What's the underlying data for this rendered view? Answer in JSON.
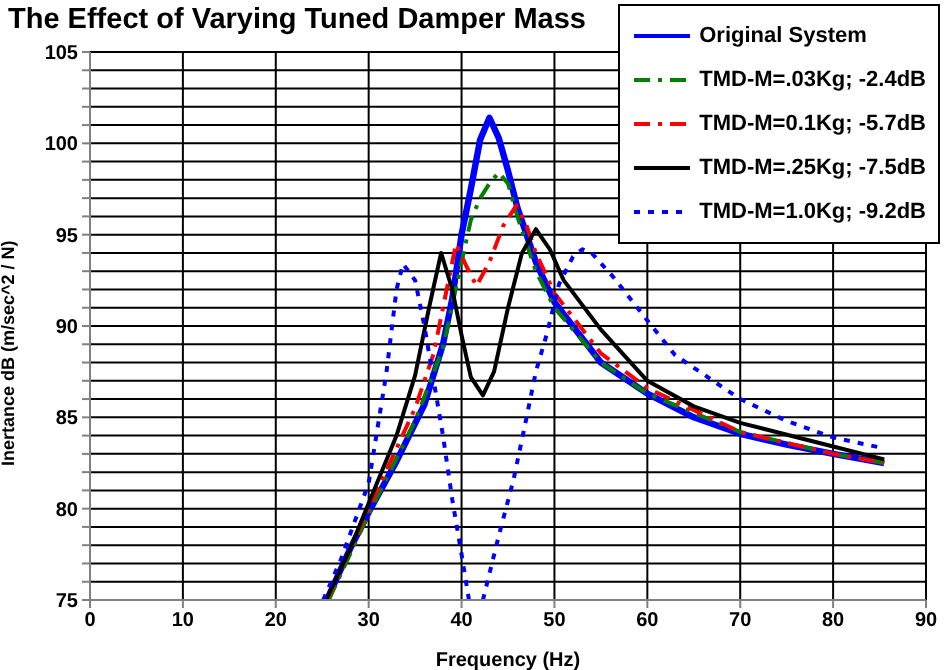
{
  "chart_data": {
    "type": "line",
    "title": "The Effect of Varying Tuned Damper Mass",
    "xlabel": "Frequency (Hz)",
    "ylabel": "Inertance dB (m/sec^2 / N)",
    "xlim": [
      0,
      90
    ],
    "xticks": [
      0,
      10,
      20,
      30,
      40,
      50,
      60,
      70,
      80,
      90
    ],
    "ylim": [
      75,
      105
    ],
    "yticks": [
      75,
      {
        "value": 76,
        "label": null
      },
      {
        "value": 77,
        "label": null
      },
      {
        "value": 78,
        "label": null
      },
      {
        "value": 79,
        "label": null
      },
      80,
      {
        "value": 81,
        "label": null
      },
      {
        "value": 82,
        "label": null
      },
      {
        "value": 83,
        "label": null
      },
      {
        "value": 84,
        "label": null
      },
      85,
      {
        "value": 86,
        "label": null
      },
      {
        "value": 87,
        "label": null
      },
      {
        "value": 88,
        "label": null
      },
      {
        "value": 89,
        "label": null
      },
      90,
      {
        "value": 91,
        "label": null
      },
      {
        "value": 92,
        "label": null
      },
      {
        "value": 93,
        "label": null
      },
      {
        "value": 94,
        "label": null
      },
      95,
      {
        "value": 96,
        "label": null
      },
      {
        "value": 97,
        "label": null
      },
      {
        "value": 98,
        "label": null
      },
      {
        "value": 99,
        "label": null
      },
      100,
      {
        "value": 101,
        "label": null
      },
      {
        "value": 102,
        "label": null
      },
      {
        "value": 103,
        "label": null
      },
      {
        "value": 104,
        "label": null
      },
      105
    ],
    "grid": true,
    "legend": "top right",
    "marker": "none",
    "series": [
      {
        "name": "Original System",
        "color": "#0000ff",
        "line_style": "solid",
        "x": [
          25.5,
          28,
          30,
          33,
          36,
          38,
          39,
          40,
          41,
          42,
          43,
          44,
          45,
          46,
          48,
          50,
          55,
          60,
          65,
          70,
          75,
          80,
          85.5
        ],
        "values": [
          75,
          77.8,
          79.8,
          82.6,
          85.7,
          89,
          91.5,
          95,
          97.5,
          100.2,
          101.4,
          100.3,
          98.5,
          96.5,
          93.5,
          91.3,
          88,
          86.3,
          85,
          84.1,
          83.5,
          83,
          82.5
        ]
      },
      {
        "name": "TMD-M=.03Kg; -2.4dB",
        "color": "#008000",
        "line_style": "dashed",
        "x": [
          25.7,
          30,
          35,
          38,
          40,
          41,
          42,
          43,
          44,
          45,
          46,
          48,
          50,
          55,
          60,
          70,
          80,
          85.5
        ],
        "values": [
          75,
          79.7,
          84.8,
          88.8,
          93.5,
          95.8,
          97,
          97.8,
          98.4,
          97.8,
          96,
          93,
          91,
          88,
          86.3,
          84.2,
          83,
          82.5
        ]
      },
      {
        "name": "TMD-M=0.1Kg; -5.7dB",
        "color": "#ff0000",
        "line_style": "dashed",
        "x": [
          25.5,
          30,
          35,
          37,
          38,
          39.4,
          40.5,
          41.6,
          43,
          44.5,
          45.9,
          47,
          48,
          50,
          55,
          60,
          70,
          80,
          85.5
        ],
        "values": [
          75,
          80,
          85.5,
          88.5,
          91,
          94.5,
          93.3,
          92.2,
          93.5,
          95.5,
          96.6,
          95.5,
          94,
          91.8,
          88.5,
          86.6,
          84.2,
          83,
          82.5
        ]
      },
      {
        "name": "TMD-M=.25Kg; -7.5dB",
        "color": "#000000",
        "line_style": "solid",
        "x": [
          25.4,
          28,
          30,
          33,
          35,
          36.5,
          37.8,
          39,
          40,
          41,
          42.3,
          43.5,
          45,
          46.5,
          48,
          49.5,
          51,
          55,
          60,
          65,
          70,
          80,
          85.5
        ],
        "values": [
          75,
          77.8,
          80.3,
          84,
          87.3,
          91,
          94,
          92,
          89.5,
          87.2,
          86.2,
          87.5,
          91,
          94,
          95.3,
          94.2,
          92.5,
          89.8,
          87,
          85.6,
          84.7,
          83.4,
          82.7
        ]
      },
      {
        "name": "TMD-M=1.0Kg; -9.2dB",
        "color": "#0000ff",
        "line_style": "dotted",
        "x": [
          25.1,
          27,
          30,
          31.9,
          33,
          33.7,
          35,
          36,
          37,
          38,
          39,
          40,
          40.8,
          41.5,
          42.3,
          44,
          45.6,
          47,
          48,
          49.2,
          50.5,
          52,
          53,
          54,
          56.3,
          60,
          63,
          70,
          75,
          80,
          85.5
        ],
        "values": [
          75,
          77.2,
          81.4,
          87.4,
          92,
          93.4,
          92.5,
          90,
          87,
          84,
          80.5,
          77.5,
          75,
          null,
          75,
          78.5,
          81.6,
          85,
          87.5,
          89.6,
          92.3,
          93.8,
          94.2,
          94,
          92.7,
          90.3,
          88.4,
          86,
          84.8,
          83.9,
          83.3
        ]
      }
    ]
  }
}
